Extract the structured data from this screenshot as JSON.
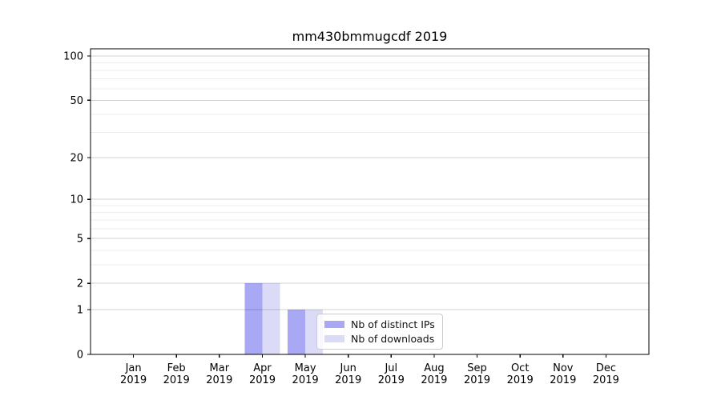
{
  "chart_data": {
    "type": "bar",
    "title": "mm430bmmugcdf 2019",
    "categories": [
      "Jan",
      "Feb",
      "Mar",
      "Apr",
      "May",
      "Jun",
      "Jul",
      "Aug",
      "Sep",
      "Oct",
      "Nov",
      "Dec"
    ],
    "x_tick_year": "2019",
    "series": [
      {
        "name": "Nb of distinct IPs",
        "color": "#a8a8f4",
        "values": [
          0,
          0,
          0,
          2,
          1,
          0,
          0,
          0,
          0,
          0,
          0,
          0
        ]
      },
      {
        "name": "Nb of downloads",
        "color": "#dbdbf7",
        "values": [
          0,
          0,
          0,
          2,
          1,
          0,
          0,
          0,
          0,
          0,
          0,
          0
        ]
      }
    ],
    "y_scale": "log1p",
    "ylim": [
      0,
      112
    ],
    "y_ticks": [
      0,
      1,
      2,
      5,
      10,
      20,
      50,
      100
    ],
    "y_minor_ticks": [
      3,
      4,
      6,
      7,
      8,
      9,
      30,
      40,
      60,
      70,
      80,
      90
    ],
    "grid": true,
    "legend_position": "lower-center",
    "colors": {
      "spine": "#000000",
      "major_grid": "rgba(0,0,0,0.18)",
      "minor_grid": "rgba(0,0,0,0.075)",
      "tick_text": "#000000"
    }
  }
}
